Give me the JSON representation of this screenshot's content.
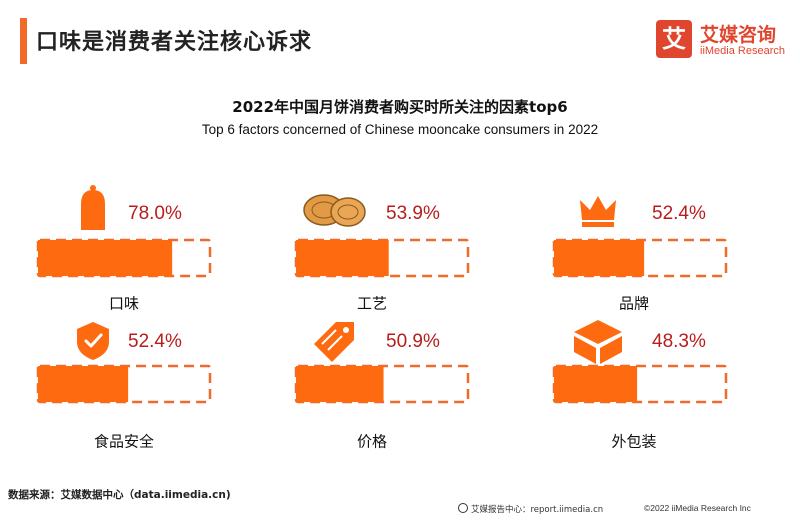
{
  "header": {
    "title": "口味是消费者关注核心诉求",
    "logo_mark": "艾",
    "logo_cn": "艾媒咨询",
    "logo_en": "iiMedia Research"
  },
  "chart_data": {
    "type": "bar",
    "title": "2022年中国月饼消费者购买时所关注的因素top6",
    "subtitle": "Top 6 factors concerned of Chinese mooncake consumers in 2022",
    "categories": [
      "口味",
      "工艺",
      "品牌",
      "食品安全",
      "价格",
      "外包装"
    ],
    "values": [
      78.0,
      53.9,
      52.4,
      52.4,
      50.9,
      48.3
    ],
    "value_labels": [
      "78.0%",
      "53.9%",
      "52.4%",
      "52.4%",
      "50.9%",
      "48.3%"
    ],
    "icons": [
      "salt-shaker-icon",
      "mooncake-icon",
      "crown-icon",
      "shield-check-icon",
      "price-tag-icon",
      "gift-box-icon"
    ],
    "unit": "%",
    "ylim": [
      0,
      100
    ],
    "colors": {
      "bar": "#fd6a0f",
      "value_text": "#b91c1c",
      "track_border": "#f06a2a"
    }
  },
  "footer": {
    "source": "数据来源：艾媒数据中心（data.iimedia.cn)",
    "report_center": "艾媒报告中心：report.iimedia.cn",
    "copyright": "©2022  iiMedia Research  Inc"
  }
}
